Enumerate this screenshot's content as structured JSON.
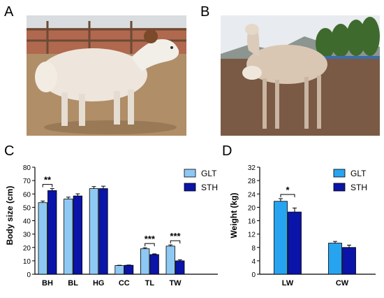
{
  "panels": {
    "a": "A",
    "b": "B",
    "c": "C",
    "d": "D"
  },
  "photos": {
    "a": {
      "subject": "sheep-photo-a",
      "colors": {
        "sky": "#d9dde0",
        "ground": "#b08e68",
        "wall": "#b0684e",
        "fleece": "#eee6dc",
        "face": "#f2eee8",
        "horn": "#7a4a2a"
      }
    },
    "b": {
      "subject": "sheep-photo-b",
      "colors": {
        "sky": "#e8ebef",
        "hills": "#8c9590",
        "trees": "#3f6a2d",
        "ground": "#7a5a44",
        "fleece": "#d9c7b4",
        "lamb": "#efe7dc"
      }
    }
  },
  "chart_data": [
    {
      "id": "C",
      "type": "bar",
      "ylabel": "Body size (cm)",
      "ylim": [
        0,
        80
      ],
      "yticks": [
        "0",
        "10",
        "20",
        "30",
        "40",
        "50",
        "60",
        "70",
        "80"
      ],
      "categories": [
        "BH",
        "BL",
        "HG",
        "CC",
        "TL",
        "TW"
      ],
      "series": [
        {
          "name": "GLT",
          "color": "#8ec9f4",
          "values": [
            53.5,
            56.2,
            64,
            6.5,
            19,
            21
          ],
          "errors": [
            1.2,
            1.4,
            1.5,
            0.2,
            0.8,
            0.9
          ]
        },
        {
          "name": "STH",
          "color": "#0a14a8",
          "values": [
            62.5,
            58.5,
            64,
            6.7,
            14.7,
            10
          ],
          "errors": [
            1.5,
            1.6,
            1.8,
            0.2,
            0.5,
            0.8
          ]
        }
      ],
      "significance": [
        {
          "category_index": 0,
          "label": "**"
        },
        {
          "category_index": 4,
          "label": "***"
        },
        {
          "category_index": 5,
          "label": "***"
        }
      ],
      "legend_position": "top-right"
    },
    {
      "id": "D",
      "type": "bar",
      "ylabel": "Weight (kg)",
      "ylim": [
        0,
        32
      ],
      "yticks": [
        "0",
        "4",
        "8",
        "12",
        "16",
        "20",
        "24",
        "28",
        "32"
      ],
      "categories": [
        "LW",
        "CW"
      ],
      "series": [
        {
          "name": "GLT",
          "color": "#27a4f0",
          "values": [
            21.8,
            9.3
          ],
          "errors": [
            0.8,
            0.5
          ]
        },
        {
          "name": "STH",
          "color": "#0a14a8",
          "values": [
            18.6,
            8
          ],
          "errors": [
            1.2,
            0.7
          ]
        }
      ],
      "significance": [
        {
          "category_index": 0,
          "label": "*"
        }
      ],
      "legend_position": "top-right"
    }
  ]
}
